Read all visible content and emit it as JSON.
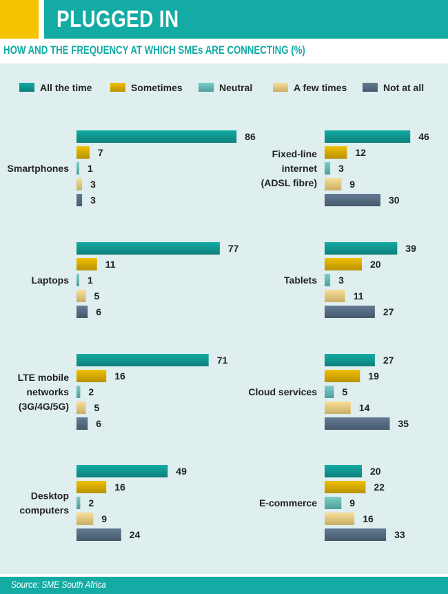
{
  "header": {
    "title": "PLUGGED IN"
  },
  "subtitle": "HOW AND THE FREQUENCY AT WHICH SMEs ARE CONNECTING (%)",
  "footer": {
    "source": "Source: SME South Africa"
  },
  "colors": {
    "accent_teal": "#13aba4",
    "accent_yellow": "#f5c400",
    "panel_bg": "#dfeeee",
    "all_the_time": "#13aba4",
    "sometimes": "#f0c000",
    "neutral": "#7ecdc8",
    "a_few_times": "#f8de96",
    "not_at_all": "#637b93"
  },
  "chart_data": {
    "type": "bar",
    "orientation": "horizontal",
    "unit": "%",
    "series_names": [
      "All the time",
      "Sometimes",
      "Neutral",
      "A few times",
      "Not at all"
    ],
    "legend_placement": "top",
    "groups": [
      {
        "label": [
          "Smartphones"
        ],
        "values": [
          86,
          7,
          1,
          3,
          3
        ]
      },
      {
        "label": [
          "Fixed-line",
          "internet",
          "(ADSL fibre)"
        ],
        "values": [
          46,
          12,
          3,
          9,
          30
        ]
      },
      {
        "label": [
          "Laptops"
        ],
        "values": [
          77,
          11,
          1,
          5,
          6
        ]
      },
      {
        "label": [
          "Tablets"
        ],
        "values": [
          39,
          20,
          3,
          11,
          27
        ]
      },
      {
        "label": [
          "LTE mobile",
          "networks",
          "(3G/4G/5G)"
        ],
        "values": [
          71,
          16,
          2,
          5,
          6
        ]
      },
      {
        "label": [
          "Cloud services"
        ],
        "values": [
          27,
          19,
          5,
          14,
          35
        ]
      },
      {
        "label": [
          "Desktop",
          "computers"
        ],
        "values": [
          49,
          16,
          2,
          9,
          24
        ]
      },
      {
        "label": [
          "E-commerce"
        ],
        "values": [
          20,
          22,
          9,
          16,
          33
        ]
      }
    ]
  }
}
